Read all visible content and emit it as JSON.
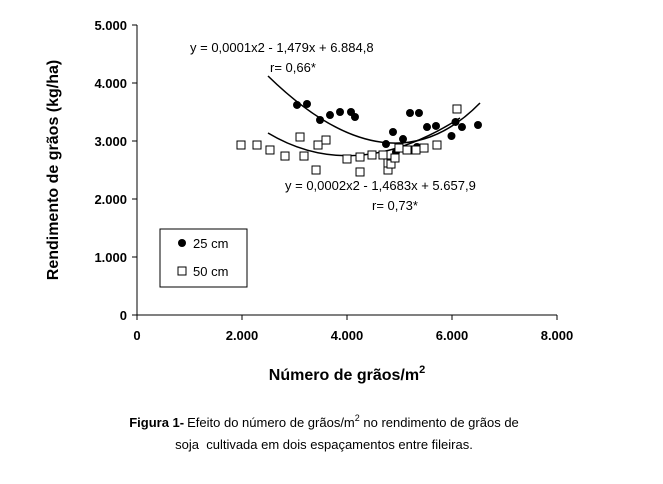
{
  "chart_data": {
    "type": "scatter",
    "x_label": "Número de grãos/m",
    "x_label_sup": "2",
    "y_label": "Rendimento de grãos (kg/ha)",
    "xlim": [
      0,
      8000
    ],
    "ylim": [
      0,
      5000
    ],
    "xticks": [
      0,
      {
        "value": 2000,
        "label": "2.000"
      },
      {
        "value": 4000,
        "label": "4.000"
      },
      {
        "value": 6000,
        "label": "6.000"
      },
      {
        "value": 8000,
        "label": "8.000"
      }
    ],
    "yticks": [
      0,
      {
        "value": 1000,
        "label": "1.000"
      },
      {
        "value": 2000,
        "label": "2.000"
      },
      {
        "value": 3000,
        "label": "3.000"
      },
      {
        "value": 4000,
        "label": "4.000"
      },
      {
        "value": 5000,
        "label": "5.000"
      }
    ],
    "grid": false,
    "series": [
      {
        "name": "25 cm",
        "color": "#000000",
        "marker": "circle",
        "x": [
          3048,
          3238,
          3486,
          3676,
          3867,
          4076,
          4152,
          4743,
          4876,
          4933,
          5067,
          5200,
          5333,
          5371,
          5524,
          5695,
          5990,
          6067,
          6190,
          6495
        ],
        "values": [
          3621,
          3638,
          3362,
          3448,
          3500,
          3500,
          3414,
          2948,
          3155,
          2810,
          3034,
          3483,
          2897,
          3483,
          3241,
          3259,
          3086,
          3328,
          3241,
          3276
        ]
      },
      {
        "name": "50 cm",
        "color": "#000000",
        "marker": "square",
        "x": [
          1981,
          2286,
          2533,
          2819,
          3105,
          3181,
          3410,
          3448,
          3600,
          4000,
          4248,
          4248,
          4476,
          4686,
          4781,
          4781,
          4838,
          4914,
          4990,
          5143,
          5314,
          5467,
          5714,
          6095
        ],
        "values": [
          2931,
          2931,
          2845,
          2741,
          3069,
          2741,
          2500,
          2931,
          3017,
          2690,
          2466,
          2724,
          2759,
          2759,
          2500,
          2621,
          2603,
          2707,
          2879,
          2845,
          2845,
          2879,
          2931,
          3552
        ]
      }
    ],
    "annotations": [
      "y = 0,0001x2 - 1,479x + 6.884,8",
      "r= 0,66*",
      "y = 0,0002x2 - 1,4683x + 5.657,9",
      "r= 0,73*"
    ],
    "caption": {
      "label": "Figura 1-",
      "line1": "Efeito do número de grãos/m",
      "line1_sup": "2",
      "line1_end": " no rendimento de grãos de",
      "line2": "soja  cultivada em dois espaçamentos entre fileiras."
    }
  }
}
